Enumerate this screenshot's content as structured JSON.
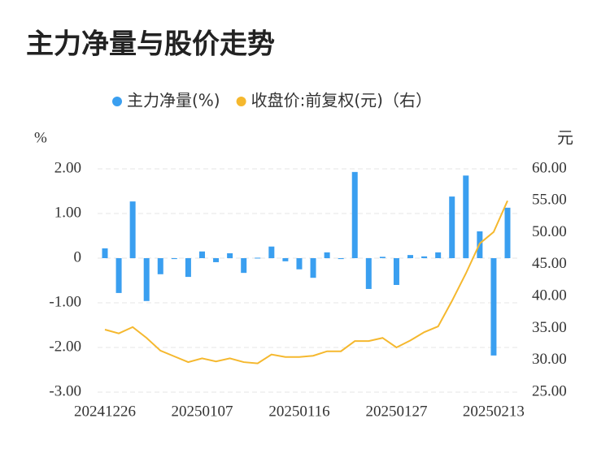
{
  "chart_data": {
    "type": "bar-line",
    "title": "主力净量与股价走势",
    "y_label": "%",
    "y2_label": "元",
    "categories": [
      "20241226",
      null,
      null,
      null,
      null,
      null,
      null,
      "20250107",
      null,
      null,
      null,
      null,
      null,
      null,
      "20250116",
      null,
      null,
      null,
      null,
      null,
      null,
      "20250127",
      null,
      null,
      null,
      null,
      null,
      null,
      "20250213",
      null
    ],
    "series": [
      {
        "name": "主力净量(%)",
        "type": "bar",
        "color": "#3a9ff0",
        "values": [
          0.22,
          -0.78,
          1.27,
          -0.96,
          -0.36,
          -0.02,
          -0.42,
          0.15,
          -0.09,
          0.11,
          -0.33,
          0.01,
          0.26,
          -0.07,
          -0.25,
          -0.44,
          0.13,
          -0.02,
          1.93,
          -0.69,
          0.03,
          -0.6,
          0.07,
          0.04,
          0.13,
          1.38,
          1.85,
          0.6,
          -2.18,
          1.13
        ]
      },
      {
        "name": "收盘价:前复权(元)（右）",
        "type": "line",
        "axis": "y2",
        "color": "#f5b82e",
        "values": [
          34.8,
          34.2,
          35.2,
          33.5,
          31.5,
          30.6,
          29.7,
          30.3,
          29.8,
          30.3,
          29.7,
          29.5,
          30.9,
          30.5,
          30.5,
          30.7,
          31.4,
          31.4,
          33.0,
          33.0,
          33.5,
          32.0,
          33.1,
          34.4,
          35.3,
          39.3,
          43.6,
          48.3,
          50.1,
          55.0
        ]
      }
    ],
    "ylim": [
      -3,
      2
    ],
    "yticks": [
      {
        "value": -3,
        "label": "-3.00"
      },
      {
        "value": -2,
        "label": "-2.00"
      },
      {
        "value": -1,
        "label": "-1.00"
      },
      0,
      {
        "value": 1,
        "label": "1.00"
      },
      {
        "value": 2,
        "label": "2.00"
      }
    ],
    "y2lim": [
      25,
      60
    ],
    "y2ticks": [
      {
        "value": 25,
        "label": "25.00"
      },
      {
        "value": 30,
        "label": "30.00"
      },
      {
        "value": 35,
        "label": "35.00"
      },
      {
        "value": 40,
        "label": "40.00"
      },
      {
        "value": 45,
        "label": "45.00"
      },
      {
        "value": 50,
        "label": "50.00"
      },
      {
        "value": 55,
        "label": "55.00"
      },
      {
        "value": 60,
        "label": "60.00"
      }
    ],
    "grid": true
  }
}
